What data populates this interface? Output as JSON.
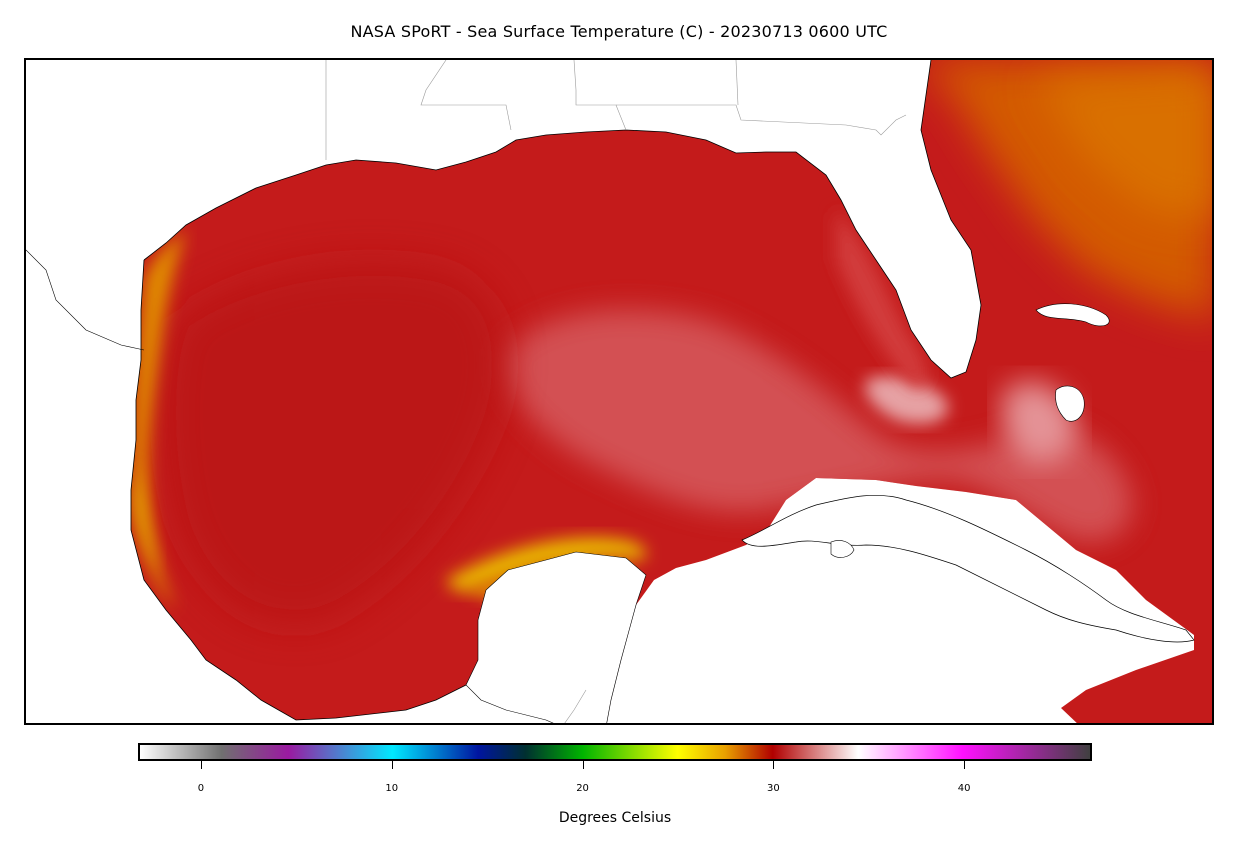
{
  "title": "NASA SPoRT - Sea Surface Temperature (C) - 20230713 0600 UTC",
  "colorbar": {
    "label": "Degrees Celsius",
    "range": [
      -3.3,
      46.7
    ],
    "ticks": [
      {
        "value": 0,
        "label": "0"
      },
      {
        "value": 10,
        "label": "10"
      },
      {
        "value": 20,
        "label": "20"
      },
      {
        "value": 30,
        "label": "30"
      },
      {
        "value": 40,
        "label": "40"
      }
    ],
    "stops": [
      {
        "value": -3.3,
        "color": "#ffffff"
      },
      {
        "value": 1,
        "color": "#707070"
      },
      {
        "value": 4.5,
        "color": "#9a1aa0"
      },
      {
        "value": 10,
        "color": "#00e8ff"
      },
      {
        "value": 14.5,
        "color": "#0015a0"
      },
      {
        "value": 17,
        "color": "#003030"
      },
      {
        "value": 20,
        "color": "#00b400"
      },
      {
        "value": 25,
        "color": "#ffff00"
      },
      {
        "value": 27.5,
        "color": "#e8a000"
      },
      {
        "value": 30,
        "color": "#b00000"
      },
      {
        "value": 34.5,
        "color": "#ffffff"
      },
      {
        "value": 40,
        "color": "#ff10ff"
      },
      {
        "value": 46.7,
        "color": "#404040"
      }
    ]
  },
  "map": {
    "region": "Gulf of Mexico and western Caribbean",
    "colors": {
      "land": "#ffffff",
      "warm_sst": "#c21a1a",
      "gulf_sst": "#c7211f",
      "atlantic_sst": "#d65500",
      "coastal_yellow": "#e6a800",
      "loop_pale": "#d8777a",
      "coastline": "#000000",
      "border": "#9a9a9a"
    }
  }
}
